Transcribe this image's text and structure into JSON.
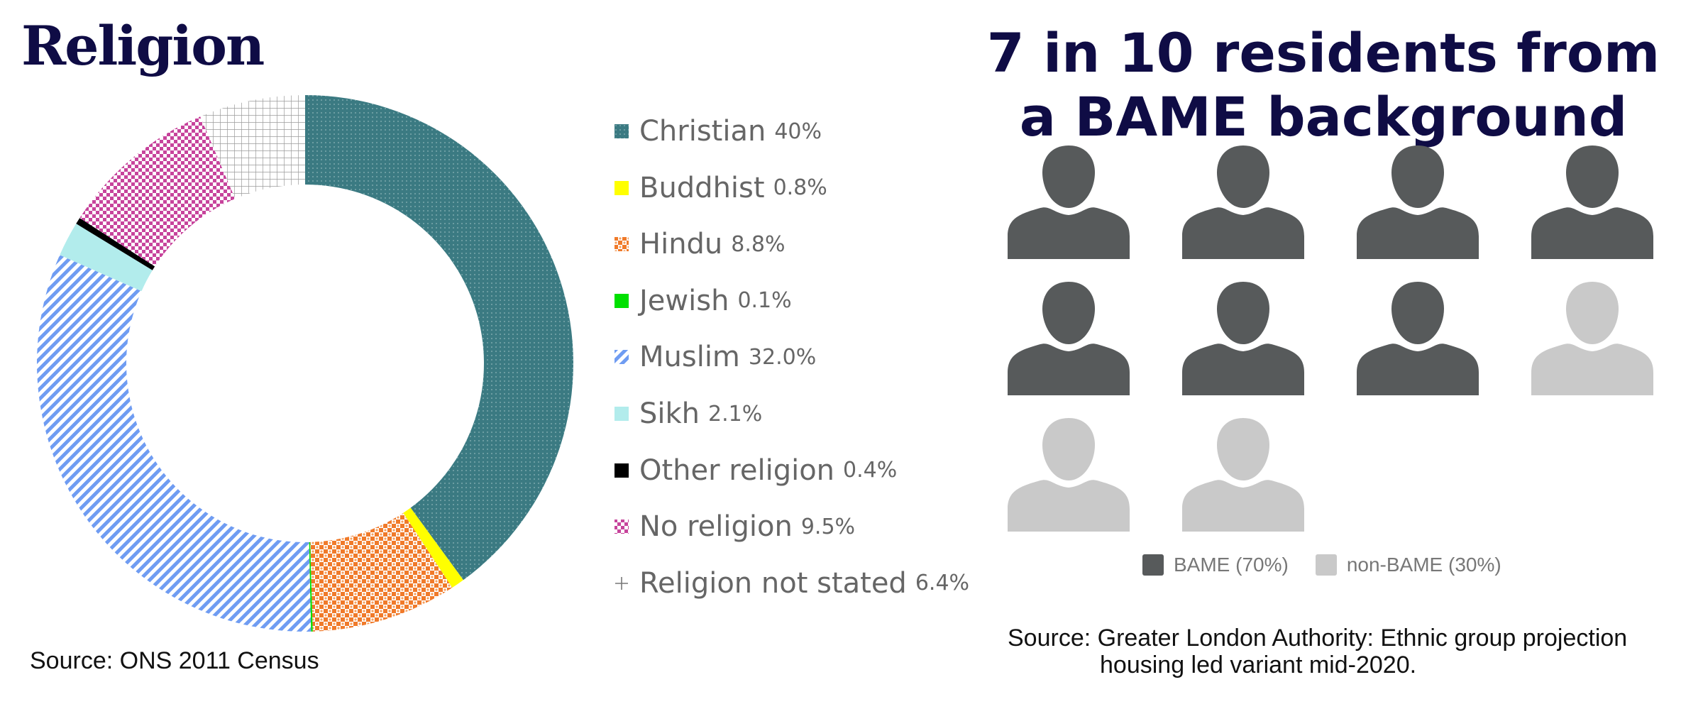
{
  "left_panel": {
    "title": "Religion",
    "source": "Source: ONS 2011 Census"
  },
  "right_panel": {
    "title": "7 in 10 residents from a BAME background",
    "legend": [
      {
        "label": "BAME (70%)",
        "color": "#575a5b"
      },
      {
        "label": "non-BAME (30%)",
        "color": "#c9c9c9"
      }
    ],
    "source_line1": "Source: Greater London Authority: Ethnic group projection",
    "source_line2": "housing led variant  mid-2020."
  },
  "chart_data": [
    {
      "type": "pie",
      "variant": "donut",
      "title": "Religion",
      "start": "12 o'clock, clockwise",
      "legend_position": "right",
      "series": [
        {
          "name": "Christian",
          "value": 40,
          "pct_label": "40%",
          "color": "#3b7a82",
          "pattern": "dots"
        },
        {
          "name": "Buddhist",
          "value": 0.8,
          "pct_label": "0.8%",
          "color": "#ffff00",
          "pattern": "solid"
        },
        {
          "name": "Hindu",
          "value": 8.8,
          "pct_label": "8.8%",
          "color": "#f07a2a",
          "pattern": "checker"
        },
        {
          "name": "Jewish",
          "value": 0.1,
          "pct_label": "0.1%",
          "color": "#00e000",
          "pattern": "solid"
        },
        {
          "name": "Muslim",
          "value": 32.0,
          "pct_label": "32.0%",
          "color": "#6f9cf2",
          "pattern": "diagonal"
        },
        {
          "name": "Sikh",
          "value": 2.1,
          "pct_label": "2.1%",
          "color": "#b2ecec",
          "pattern": "solid"
        },
        {
          "name": "Other religion",
          "value": 0.4,
          "pct_label": "0.4%",
          "color": "#000000",
          "pattern": "solid"
        },
        {
          "name": "No religion",
          "value": 9.5,
          "pct_label": "9.5%",
          "color": "#c7449c",
          "pattern": "checker"
        },
        {
          "name": "Religion not stated",
          "value": 6.4,
          "pct_label": "6.4%",
          "color": "#999999",
          "pattern": "grid"
        }
      ]
    },
    {
      "type": "pictogram",
      "title": "7 in 10 residents from a BAME background",
      "total_icons": 10,
      "series": [
        {
          "name": "BAME",
          "value": 7,
          "percent": 70,
          "color": "#575a5b"
        },
        {
          "name": "non-BAME",
          "value": 3,
          "percent": 30,
          "color": "#c9c9c9"
        }
      ]
    }
  ]
}
